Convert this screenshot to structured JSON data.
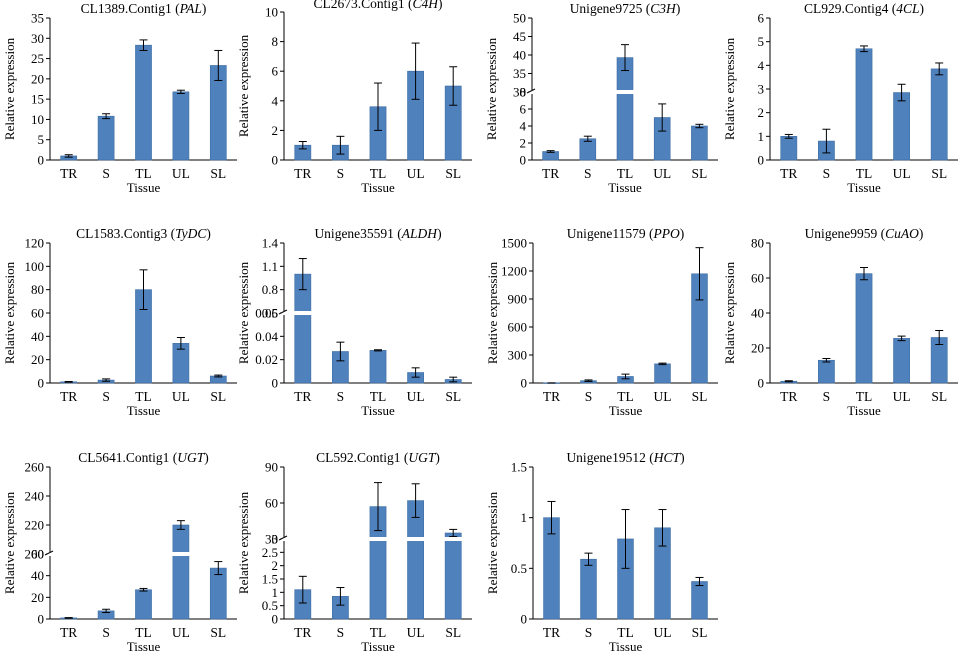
{
  "figure": {
    "x_axis_label": "Tissue",
    "y_axis_label": "Relative expression"
  },
  "chart_data": [
    {
      "type": "bar",
      "title": "CL1389.Contig1",
      "gene": "PAL",
      "categories": [
        "TR",
        "S",
        "TL",
        "UL",
        "SL"
      ],
      "values": [
        1.0,
        10.8,
        28.3,
        16.8,
        23.3
      ],
      "errors": [
        0.3,
        0.6,
        1.3,
        0.4,
        3.7
      ],
      "ylim": [
        0,
        35
      ],
      "yticks": [
        "0",
        "5",
        "10",
        "15",
        "20",
        "25",
        "30",
        "35"
      ],
      "xlabel": "Tissue",
      "ylabel": "Relative expression"
    },
    {
      "type": "bar",
      "title": "CL2673.Contig1",
      "gene": "C4H",
      "categories": [
        "TR",
        "S",
        "TL",
        "UL",
        "SL"
      ],
      "values": [
        1.0,
        1.0,
        3.6,
        6.0,
        5.0
      ],
      "errors": [
        0.25,
        0.6,
        1.6,
        1.9,
        1.3
      ],
      "ylim": [
        0,
        10
      ],
      "yticks": [
        "0",
        "2",
        "4",
        "6",
        "8",
        "10"
      ],
      "xlabel": "Tissue",
      "ylabel": "Relative expression"
    },
    {
      "type": "bar",
      "title": "Unigene9725",
      "gene": "C3H",
      "categories": [
        "TR",
        "S",
        "TL",
        "UL",
        "SL"
      ],
      "values": [
        1.0,
        2.5,
        39.3,
        5.0,
        4.0
      ],
      "errors": [
        0.1,
        0.3,
        3.5,
        1.6,
        0.2
      ],
      "broken_axis": true,
      "lower_range": [
        0,
        8
      ],
      "lower_ticks": [
        "0",
        "2",
        "4",
        "6",
        "8"
      ],
      "upper_range": [
        30,
        50
      ],
      "upper_ticks": [
        "30",
        "35",
        "40",
        "45",
        "50"
      ],
      "xlabel": "Tissue",
      "ylabel": "Relative expression"
    },
    {
      "type": "bar",
      "title": "CL929.Contig4",
      "gene": "4CL",
      "categories": [
        "TR",
        "S",
        "TL",
        "UL",
        "SL"
      ],
      "values": [
        1.0,
        0.8,
        4.7,
        2.85,
        3.85
      ],
      "errors": [
        0.08,
        0.5,
        0.12,
        0.35,
        0.25
      ],
      "ylim": [
        0,
        6
      ],
      "yticks": [
        "0",
        "1",
        "2",
        "3",
        "4",
        "5",
        "6"
      ],
      "xlabel": "Tissue",
      "ylabel": "Relative expression"
    },
    {
      "type": "bar",
      "title": "CL1583.Contig3",
      "gene": "TyDC",
      "categories": [
        "TR",
        "S",
        "TL",
        "UL",
        "SL"
      ],
      "values": [
        1.0,
        2.5,
        80.0,
        34.0,
        6.0
      ],
      "errors": [
        0.3,
        1.0,
        17.0,
        5.0,
        0.8
      ],
      "ylim": [
        0,
        120
      ],
      "yticks": [
        "0",
        "20",
        "40",
        "60",
        "80",
        "100",
        "120"
      ],
      "xlabel": "Tissue",
      "ylabel": "Relative expression"
    },
    {
      "type": "bar",
      "title": "Unigene35591",
      "gene": "ALDH",
      "categories": [
        "TR",
        "S",
        "TL",
        "UL",
        "SL"
      ],
      "values": [
        1.0,
        0.027,
        0.028,
        0.009,
        0.003
      ],
      "errors": [
        0.2,
        0.008,
        0.0005,
        0.004,
        0.002
      ],
      "broken_axis": true,
      "lower_range": [
        0,
        0.06
      ],
      "lower_ticks": [
        "0",
        "0.02",
        "0.04",
        "0.06"
      ],
      "upper_range": [
        0.5,
        1.4
      ],
      "upper_ticks": [
        "0.5",
        "0.8",
        "1.1",
        "1.4"
      ],
      "xlabel": "Tissue",
      "ylabel": "Relative expression"
    },
    {
      "type": "bar",
      "title": "Unigene11579",
      "gene": "PPO",
      "categories": [
        "TR",
        "S",
        "TL",
        "UL",
        "SL"
      ],
      "values": [
        1.0,
        25.0,
        70.0,
        205.0,
        1170.0
      ],
      "errors": [
        0.5,
        8.0,
        25.0,
        8.0,
        280.0
      ],
      "ylim": [
        0,
        1500
      ],
      "yticks": [
        "0",
        "300",
        "600",
        "900",
        "1200",
        "1500"
      ],
      "xlabel": "Tissue",
      "ylabel": "Relative expression"
    },
    {
      "type": "bar",
      "title": "Unigene9959",
      "gene": "CuAO",
      "categories": [
        "TR",
        "S",
        "TL",
        "UL",
        "SL"
      ],
      "values": [
        1.0,
        13.0,
        62.5,
        25.5,
        26.0
      ],
      "errors": [
        0.3,
        1.0,
        3.5,
        1.3,
        4.0
      ],
      "ylim": [
        0,
        80
      ],
      "yticks": [
        "0",
        "20",
        "40",
        "60",
        "80"
      ],
      "xlabel": "Tissue",
      "ylabel": "Relative expression"
    },
    {
      "type": "bar",
      "title": "CL5641.Contig1",
      "gene": "UGT",
      "categories": [
        "TR",
        "S",
        "TL",
        "UL",
        "SL"
      ],
      "values": [
        1.0,
        7.5,
        27.0,
        220.0,
        47.0
      ],
      "errors": [
        0.3,
        1.5,
        1.2,
        3.0,
        6.0
      ],
      "broken_axis": true,
      "lower_range": [
        0,
        60
      ],
      "lower_ticks": [
        "0",
        "20",
        "40",
        "60"
      ],
      "upper_range": [
        200,
        260
      ],
      "upper_ticks": [
        "200",
        "220",
        "240",
        "260"
      ],
      "xlabel": "Tissue",
      "ylabel": "Relative expression"
    },
    {
      "type": "bar",
      "title": "CL592.Contig1",
      "gene": "UGT",
      "categories": [
        "TR",
        "S",
        "TL",
        "UL",
        "SL"
      ],
      "values": [
        1.1,
        0.85,
        57.0,
        62.0,
        35.0
      ],
      "errors": [
        0.5,
        0.33,
        20.0,
        14.0,
        3.0
      ],
      "broken_axis": true,
      "lower_range": [
        0,
        3
      ],
      "lower_ticks": [
        "0",
        "0.5",
        "1",
        "1.5",
        "2",
        "2.5",
        "3"
      ],
      "upper_range": [
        30,
        90
      ],
      "upper_ticks": [
        "30",
        "60",
        "90"
      ],
      "xlabel": "Tissue",
      "ylabel": "Relative expression"
    },
    {
      "type": "bar",
      "title": "Unigene19512",
      "gene": "HCT",
      "categories": [
        "TR",
        "S",
        "TL",
        "UL",
        "SL"
      ],
      "values": [
        1.0,
        0.59,
        0.79,
        0.9,
        0.37
      ],
      "errors": [
        0.16,
        0.06,
        0.29,
        0.18,
        0.04
      ],
      "ylim": [
        0,
        1.5
      ],
      "yticks": [
        "0",
        "0.5",
        "1",
        "1.5"
      ],
      "xlabel": "Tissue",
      "ylabel": "Relative expression"
    }
  ]
}
